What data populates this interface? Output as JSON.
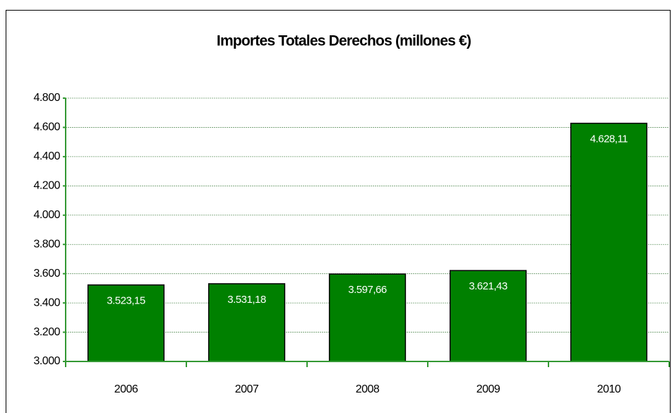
{
  "chart_data": {
    "type": "bar",
    "title": "Importes Totales Derechos (millones €)",
    "categories": [
      "2006",
      "2007",
      "2008",
      "2009",
      "2010"
    ],
    "values": [
      3523.15,
      3531.18,
      3597.66,
      3621.43,
      4628.11
    ],
    "value_labels": [
      "3.523,15",
      "3.531,18",
      "3.597,66",
      "3.621,43",
      "4.628,11"
    ],
    "color": "#008000",
    "ylim": [
      3000,
      4800
    ],
    "yticks": [
      {
        "value": 3000,
        "label": "3.000"
      },
      {
        "value": 3200,
        "label": "3.200"
      },
      {
        "value": 3400,
        "label": "3.400"
      },
      {
        "value": 3600,
        "label": "3.600"
      },
      {
        "value": 3800,
        "label": "3.800"
      },
      {
        "value": 4000,
        "label": "4.000"
      },
      {
        "value": 4200,
        "label": "4.200"
      },
      {
        "value": 4400,
        "label": "4.400"
      },
      {
        "value": 4600,
        "label": "4.600"
      },
      {
        "value": 4800,
        "label": "4.800"
      }
    ],
    "grid": true
  }
}
